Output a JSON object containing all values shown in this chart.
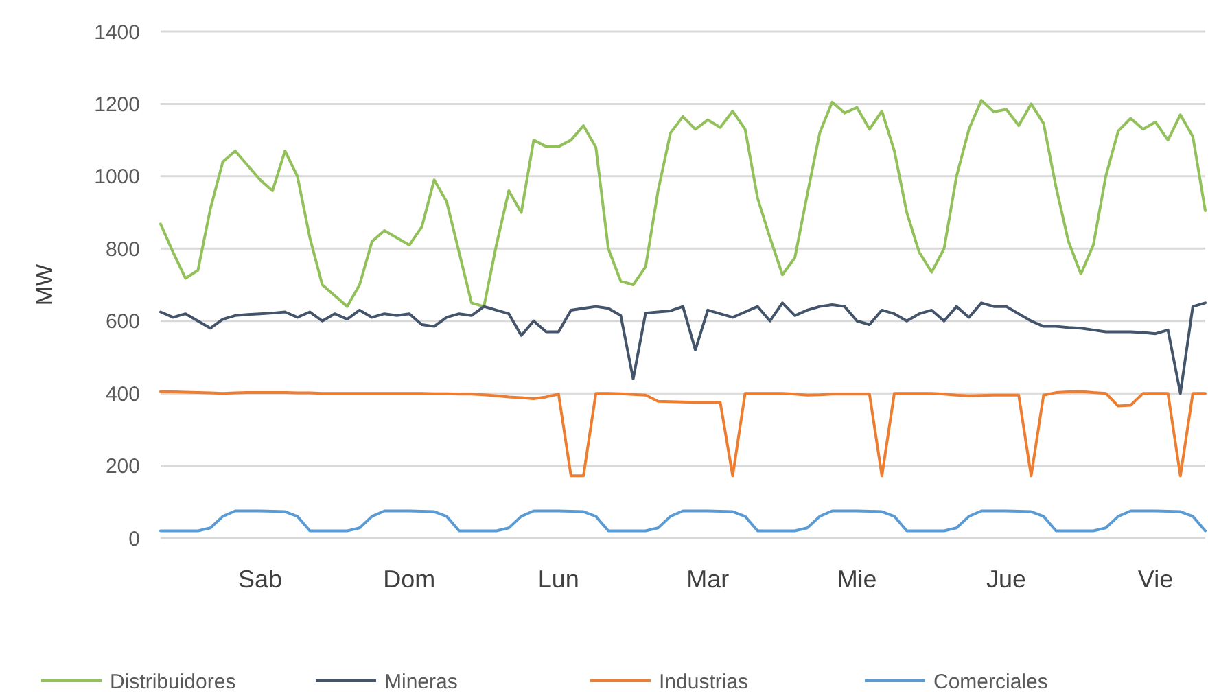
{
  "chart_data": {
    "type": "line",
    "ylabel": "MW",
    "ylim": [
      0,
      1400
    ],
    "yticks": [
      0,
      200,
      400,
      600,
      800,
      1000,
      1200,
      1400
    ],
    "categories": [
      null,
      null,
      null,
      null,
      null,
      null,
      null,
      null,
      "Sab",
      null,
      null,
      null,
      null,
      null,
      null,
      null,
      null,
      null,
      null,
      null,
      "Dom",
      null,
      null,
      null,
      null,
      null,
      null,
      null,
      null,
      null,
      null,
      null,
      "Lun",
      null,
      null,
      null,
      null,
      null,
      null,
      null,
      null,
      null,
      null,
      null,
      "Mar",
      null,
      null,
      null,
      null,
      null,
      null,
      null,
      null,
      null,
      null,
      null,
      "Mie",
      null,
      null,
      null,
      null,
      null,
      null,
      null,
      null,
      null,
      null,
      null,
      "Jue",
      null,
      null,
      null,
      null,
      null,
      null,
      null,
      null,
      null,
      null,
      null,
      "Vie",
      null,
      null,
      null,
      null
    ],
    "grid": "y",
    "legend": "bottom",
    "marker": "none",
    "line_style": "solid",
    "series": [
      {
        "name": "Distribuidores",
        "color": "#92c05a",
        "values": [
          868,
          790,
          718,
          740,
          910,
          1040,
          1070,
          1030,
          990,
          960,
          1070,
          1000,
          830,
          700,
          670,
          640,
          700,
          820,
          850,
          830,
          810,
          860,
          990,
          930,
          790,
          650,
          640,
          810,
          960,
          900,
          1100,
          1082,
          1082,
          1100,
          1140,
          1080,
          800,
          710,
          700,
          750,
          960,
          1120,
          1165,
          1130,
          1156,
          1135,
          1180,
          1130,
          940,
          830,
          728,
          775,
          950,
          1120,
          1205,
          1175,
          1190,
          1130,
          1180,
          1070,
          900,
          790,
          735,
          800,
          1000,
          1130,
          1210,
          1178,
          1185,
          1140,
          1200,
          1146,
          970,
          820,
          730,
          810,
          1000,
          1125,
          1160,
          1130,
          1150,
          1100,
          1170,
          1110,
          905
        ]
      },
      {
        "name": "Mineras",
        "color": "#44546a",
        "values": [
          625,
          610,
          620,
          600,
          580,
          605,
          615,
          618,
          620,
          622,
          625,
          610,
          625,
          600,
          620,
          605,
          630,
          610,
          620,
          615,
          620,
          590,
          585,
          610,
          620,
          615,
          640,
          630,
          620,
          560,
          600,
          570,
          570,
          630,
          635,
          640,
          635,
          615,
          440,
          622,
          625,
          628,
          640,
          520,
          630,
          620,
          610,
          625,
          640,
          600,
          650,
          615,
          630,
          640,
          645,
          640,
          600,
          590,
          630,
          620,
          600,
          620,
          630,
          600,
          640,
          610,
          650,
          640,
          640,
          620,
          600,
          585,
          585,
          582,
          580,
          575,
          570,
          570,
          570,
          568,
          565,
          575,
          400,
          640,
          650
        ]
      },
      {
        "name": "Industrias",
        "color": "#ed7d31",
        "values": [
          405,
          404,
          403,
          402,
          401,
          400,
          401,
          402,
          402,
          402,
          402,
          401,
          401,
          400,
          400,
          400,
          400,
          400,
          400,
          400,
          400,
          400,
          399,
          399,
          398,
          398,
          396,
          393,
          390,
          388,
          385,
          390,
          398,
          172,
          172,
          400,
          400,
          399,
          397,
          395,
          378,
          377,
          376,
          375,
          375,
          375,
          172,
          400,
          400,
          400,
          400,
          398,
          395,
          396,
          398,
          398,
          398,
          398,
          172,
          400,
          400,
          400,
          400,
          398,
          395,
          393,
          394,
          395,
          395,
          395,
          172,
          395,
          402,
          404,
          405,
          402,
          400,
          365,
          367,
          400,
          400,
          400,
          172,
          400,
          400
        ]
      },
      {
        "name": "Comerciales",
        "color": "#5b9bd5",
        "values": [
          20,
          20,
          20,
          20,
          28,
          60,
          75,
          75,
          75,
          74,
          73,
          60,
          20,
          20,
          20,
          20,
          28,
          60,
          75,
          75,
          75,
          74,
          73,
          60,
          20,
          20,
          20,
          20,
          28,
          60,
          75,
          75,
          75,
          74,
          73,
          60,
          20,
          20,
          20,
          20,
          28,
          60,
          75,
          75,
          75,
          74,
          73,
          60,
          20,
          20,
          20,
          20,
          28,
          60,
          75,
          75,
          75,
          74,
          73,
          60,
          20,
          20,
          20,
          20,
          28,
          60,
          75,
          75,
          75,
          74,
          73,
          60,
          20,
          20,
          20,
          20,
          28,
          60,
          75,
          75,
          75,
          74,
          73,
          60,
          20
        ]
      }
    ]
  }
}
